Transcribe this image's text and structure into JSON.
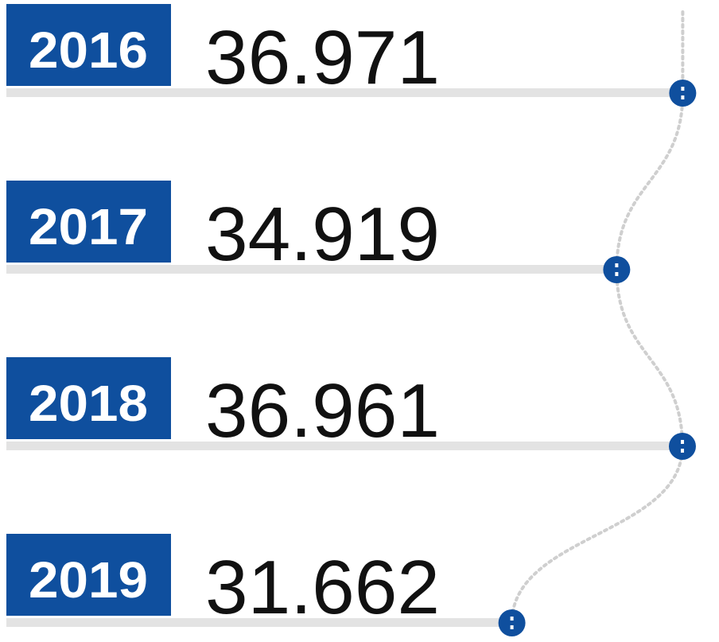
{
  "chart_data": {
    "type": "bar",
    "categories": [
      "2016",
      "2017",
      "2018",
      "2019"
    ],
    "values": [
      36.971,
      34.919,
      36.961,
      31.662
    ],
    "color": "#0f4f9e",
    "xlim": [
      16,
      38
    ]
  }
}
